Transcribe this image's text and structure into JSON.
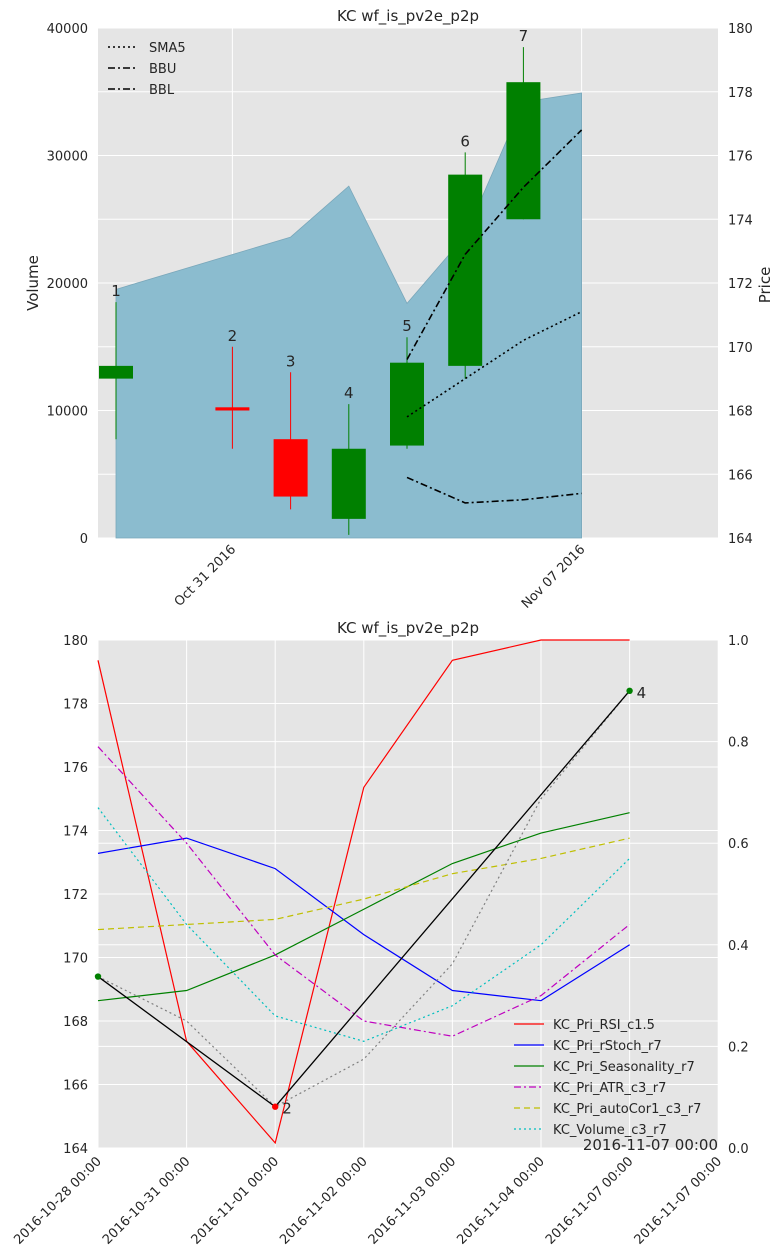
{
  "chart_data": [
    {
      "type": "candlestick",
      "title": "KC wf_is_pv2e_p2p",
      "ylabel_left": "Volume",
      "ylabel_right": "Price",
      "ylim_volume": [
        0,
        40000
      ],
      "ylim_price": [
        164,
        180
      ],
      "volume_ticks": [
        "0",
        "10000",
        "20000",
        "30000",
        "40000"
      ],
      "price_ticks": [
        "164",
        "166",
        "168",
        "170",
        "172",
        "174",
        "176",
        "178",
        "180"
      ],
      "xtick_labels": [
        {
          "label": "Oct 31 2016",
          "index": 2
        },
        {
          "label": "Nov 07 2016",
          "index": 6
        }
      ],
      "grid": true,
      "legend_position": "top-left",
      "legend": [
        {
          "name": "SMA5",
          "style": "dotted"
        },
        {
          "name": "BBU",
          "style": "dashdot"
        },
        {
          "name": "BBL",
          "style": "dashdot"
        }
      ],
      "candles": [
        {
          "label": "1",
          "x": 0,
          "open": 169.4,
          "close": 169.0,
          "high": 171.4,
          "low": 167.1,
          "color": "#008000"
        },
        {
          "label": "2",
          "x": 2,
          "open": 168.1,
          "close": 168.0,
          "high": 170.0,
          "low": 166.8,
          "color": "#ff0000"
        },
        {
          "label": "3",
          "x": 3,
          "open": 167.1,
          "close": 165.3,
          "high": 169.2,
          "low": 164.9,
          "color": "#ff0000"
        },
        {
          "label": "4",
          "x": 4,
          "open": 164.6,
          "close": 166.8,
          "high": 168.2,
          "low": 164.1,
          "color": "#008000"
        },
        {
          "label": "5",
          "x": 5,
          "open": 166.9,
          "close": 169.5,
          "high": 170.3,
          "low": 166.8,
          "color": "#008000"
        },
        {
          "label": "6",
          "x": 6,
          "open": 169.4,
          "close": 175.4,
          "high": 176.1,
          "low": 169.0,
          "color": "#008000"
        },
        {
          "label": "7",
          "x": 7,
          "open": 174.0,
          "close": 178.3,
          "high": 179.4,
          "low": 174.0,
          "color": "#008000"
        }
      ],
      "volume_area": {
        "x": [
          0,
          3,
          4,
          5,
          6,
          7,
          8
        ],
        "values": [
          19500,
          23600,
          27600,
          18400,
          23700,
          34200,
          34900
        ]
      },
      "series": [
        {
          "name": "SMA5",
          "style": "dotted",
          "x": [
            5,
            6,
            7,
            8
          ],
          "values": [
            167.8,
            169.0,
            170.2,
            171.1
          ]
        },
        {
          "name": "BBU",
          "style": "dashdot",
          "x": [
            5,
            6,
            7,
            8
          ],
          "values": [
            169.6,
            172.9,
            175.0,
            176.8
          ]
        },
        {
          "name": "BBL",
          "style": "dashdot",
          "x": [
            5,
            6,
            7,
            8
          ],
          "values": [
            165.9,
            165.1,
            165.2,
            165.4
          ]
        }
      ]
    },
    {
      "type": "line",
      "title": "KC wf_is_pv2e_p2p",
      "ylim_left": [
        164,
        180
      ],
      "ylim_right": [
        0.0,
        1.0
      ],
      "left_ticks": [
        "164",
        "166",
        "168",
        "170",
        "172",
        "174",
        "176",
        "178",
        "180"
      ],
      "right_ticks": [
        "0.0",
        "0.2",
        "0.4",
        "0.6",
        "0.8",
        "1.0"
      ],
      "x_labels": [
        "2016-10-28 00:00",
        "2016-10-31 00:00",
        "2016-11-01 00:00",
        "2016-11-02 00:00",
        "2016-11-03 00:00",
        "2016-11-04 00:00",
        "2016-11-07 00:00",
        "2016-11-07 00:00"
      ],
      "corner_label": "2016-11-07 00:00",
      "grid": true,
      "legend_position": "bottom-right",
      "series": [
        {
          "name": "KC_Pri_RSI_c1.5",
          "color": "#ff0000",
          "style": "solid",
          "axis": "right",
          "values": [
            0.96,
            0.21,
            0.01,
            0.71,
            0.96,
            1.0,
            1.0,
            null
          ]
        },
        {
          "name": "KC_Pri_rStoch_r7",
          "color": "#0000ff",
          "style": "solid",
          "axis": "right",
          "values": [
            0.58,
            0.61,
            0.55,
            0.42,
            0.31,
            0.29,
            0.4,
            null
          ]
        },
        {
          "name": "KC_Pri_Seasonality_r7",
          "color": "#008000",
          "style": "solid",
          "axis": "right",
          "values": [
            0.29,
            0.31,
            0.38,
            0.47,
            0.56,
            0.62,
            0.66,
            null
          ]
        },
        {
          "name": "KC_Pri_ATR_c3_r7",
          "color": "#bf00bf",
          "style": "dashdot",
          "axis": "right",
          "values": [
            0.79,
            0.6,
            0.38,
            0.25,
            0.22,
            0.3,
            0.44,
            null
          ]
        },
        {
          "name": "KC_Pri_autoCor1_c3_r7",
          "color": "#bfbf00",
          "style": "dashed",
          "axis": "right",
          "values": [
            0.43,
            0.44,
            0.45,
            0.49,
            0.54,
            0.57,
            0.61,
            null
          ]
        },
        {
          "name": "KC_Volume_c3_r7",
          "color": "#00bfbf",
          "style": "dotted",
          "axis": "right",
          "values": [
            0.67,
            0.44,
            0.26,
            0.21,
            0.28,
            0.4,
            0.57,
            null
          ]
        }
      ],
      "price_line": {
        "x": [
          0,
          2,
          6
        ],
        "values": [
          169.4,
          165.3,
          178.4
        ],
        "color": "#000000"
      },
      "price_dotted": {
        "x": [
          0,
          1,
          2,
          3,
          4,
          5,
          6
        ],
        "values": [
          169.4,
          168.0,
          165.3,
          166.8,
          169.8,
          175.0,
          178.4
        ],
        "color": "#808080"
      },
      "markers": [
        {
          "label": "",
          "x": 0,
          "value": 169.4,
          "color": "#008000"
        },
        {
          "label": "2",
          "x": 2,
          "value": 165.3,
          "color": "#ff0000"
        },
        {
          "label": "4",
          "x": 6,
          "value": 178.4,
          "color": "#008000"
        }
      ]
    }
  ]
}
